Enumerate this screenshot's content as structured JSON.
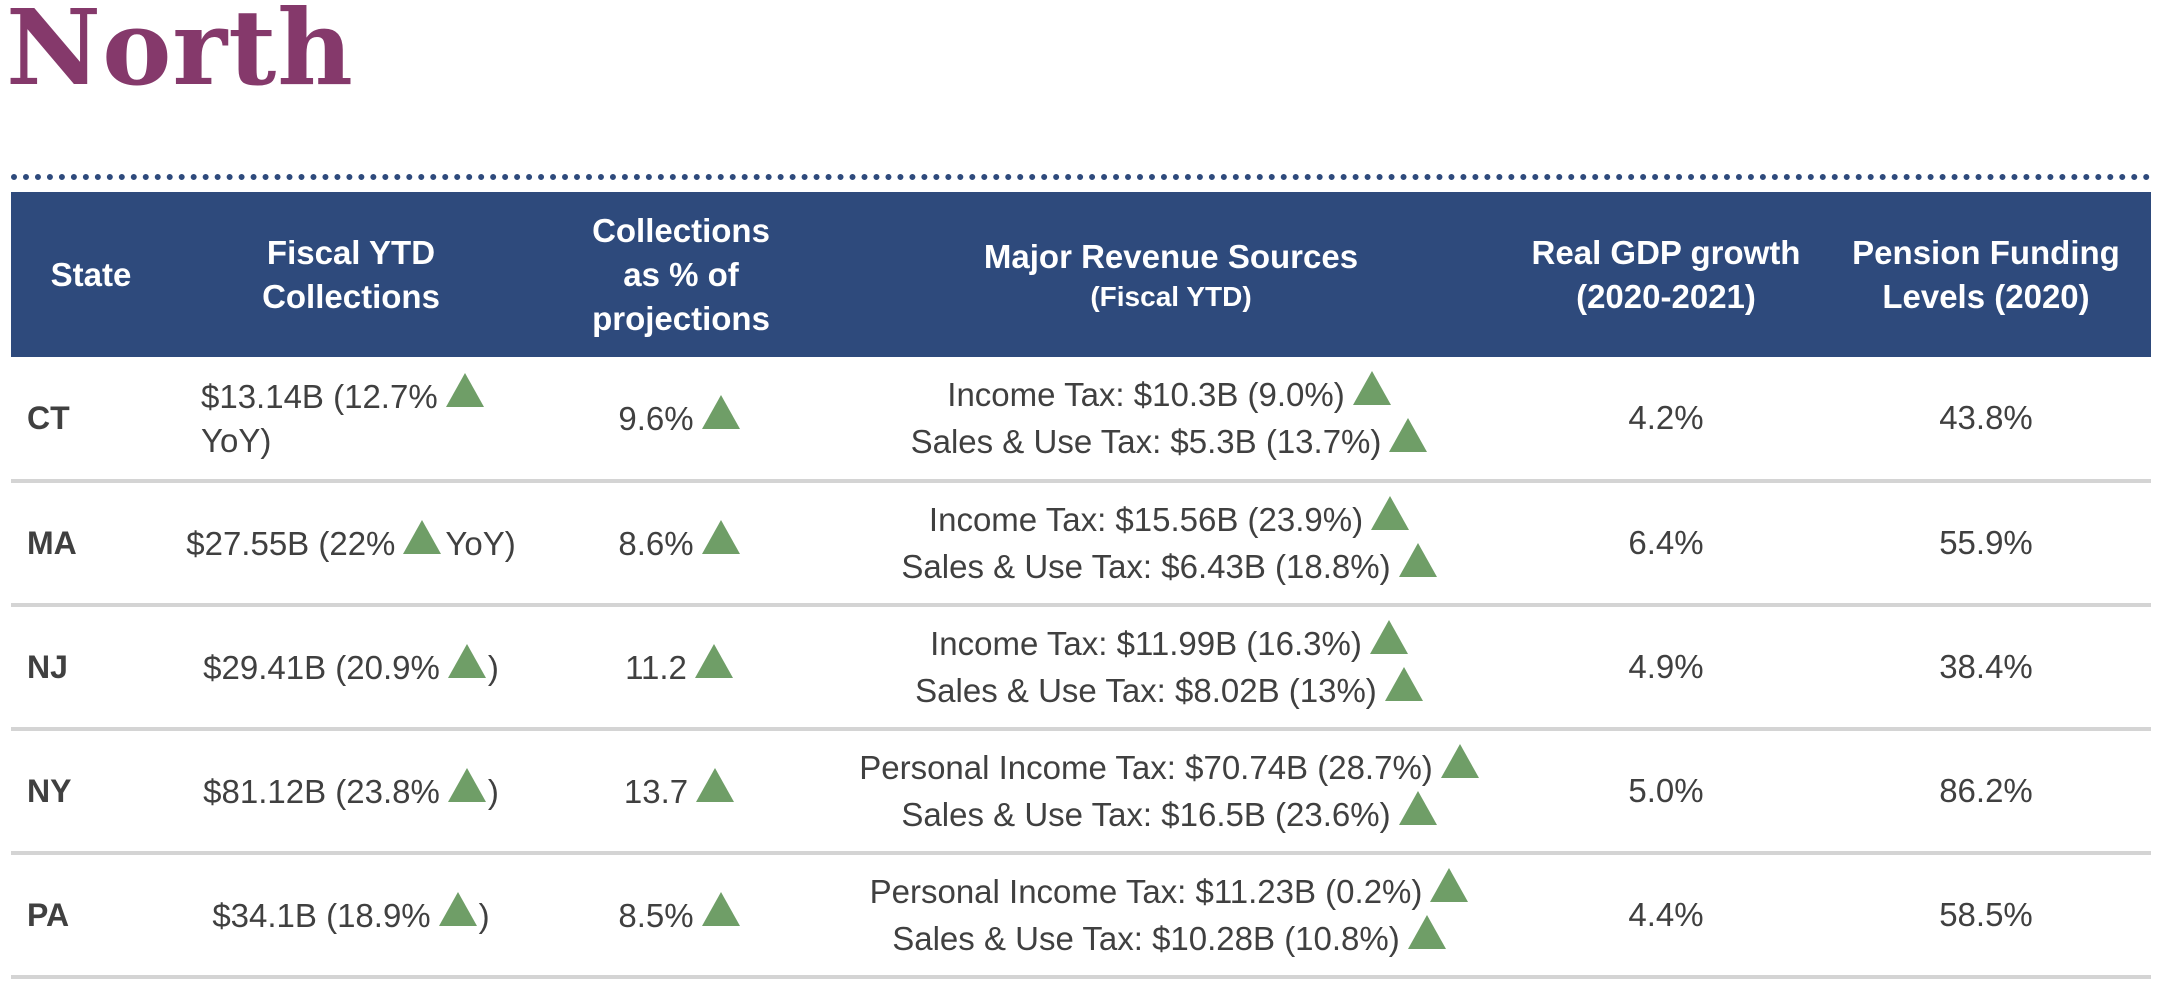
{
  "page": {
    "title": "North"
  },
  "colors": {
    "title": "#85396b",
    "header_background": "#2e4a7c",
    "header_text": "#ffffff",
    "body_text": "#404040",
    "up_arrow": "#6f9e67",
    "row_divider": "#d4d4d4"
  },
  "icons": {
    "increase": "up-triangle-icon"
  },
  "table": {
    "headers": {
      "state": "State",
      "ytd_line1": "Fiscal YTD",
      "ytd_line2": "Collections",
      "pct_line1": "Collections",
      "pct_line2": "as % of",
      "pct_line3": "projections",
      "rev_main": "Major Revenue Sources",
      "rev_sub": "(Fiscal YTD)",
      "gdp_line1": "Real GDP growth",
      "gdp_line2": "(2020-2021)",
      "pension_line1": "Pension Funding",
      "pension_line2": "Levels (2020)"
    },
    "rows": [
      {
        "state": "CT",
        "ytd_before": "$13.14B (12.7%",
        "ytd_after": "YoY)",
        "pct": "9.6%",
        "rev1": "Income Tax: $10.3B (9.0%)",
        "rev2": "Sales & Use Tax: $5.3B (13.7%)",
        "gdp": "4.2%",
        "pension": "43.8%"
      },
      {
        "state": "MA",
        "ytd_before": "$27.55B (22%",
        "ytd_after": "YoY)",
        "pct": "8.6%",
        "rev1": "Income Tax: $15.56B (23.9%)",
        "rev2": "Sales & Use Tax: $6.43B (18.8%)",
        "gdp": "6.4%",
        "pension": "55.9%"
      },
      {
        "state": "NJ",
        "ytd_before": "$29.41B (20.9%",
        "ytd_after": ")",
        "pct": "11.2",
        "rev1": "Income Tax: $11.99B (16.3%)",
        "rev2": "Sales & Use Tax: $8.02B (13%)",
        "gdp": "4.9%",
        "pension": "38.4%"
      },
      {
        "state": "NY",
        "ytd_before": "$81.12B (23.8%",
        "ytd_after": ")",
        "pct": "13.7",
        "rev1": "Personal Income Tax: $70.74B (28.7%)",
        "rev2": "Sales & Use Tax: $16.5B (23.6%)",
        "gdp": "5.0%",
        "pension": "86.2%"
      },
      {
        "state": "PA",
        "ytd_before": "$34.1B (18.9%",
        "ytd_after": ")",
        "pct": "8.5%",
        "rev1": "Personal Income Tax: $11.23B (0.2%)",
        "rev2": "Sales & Use Tax: $10.28B (10.8%)",
        "gdp": "4.4%",
        "pension": "58.5%"
      }
    ]
  }
}
